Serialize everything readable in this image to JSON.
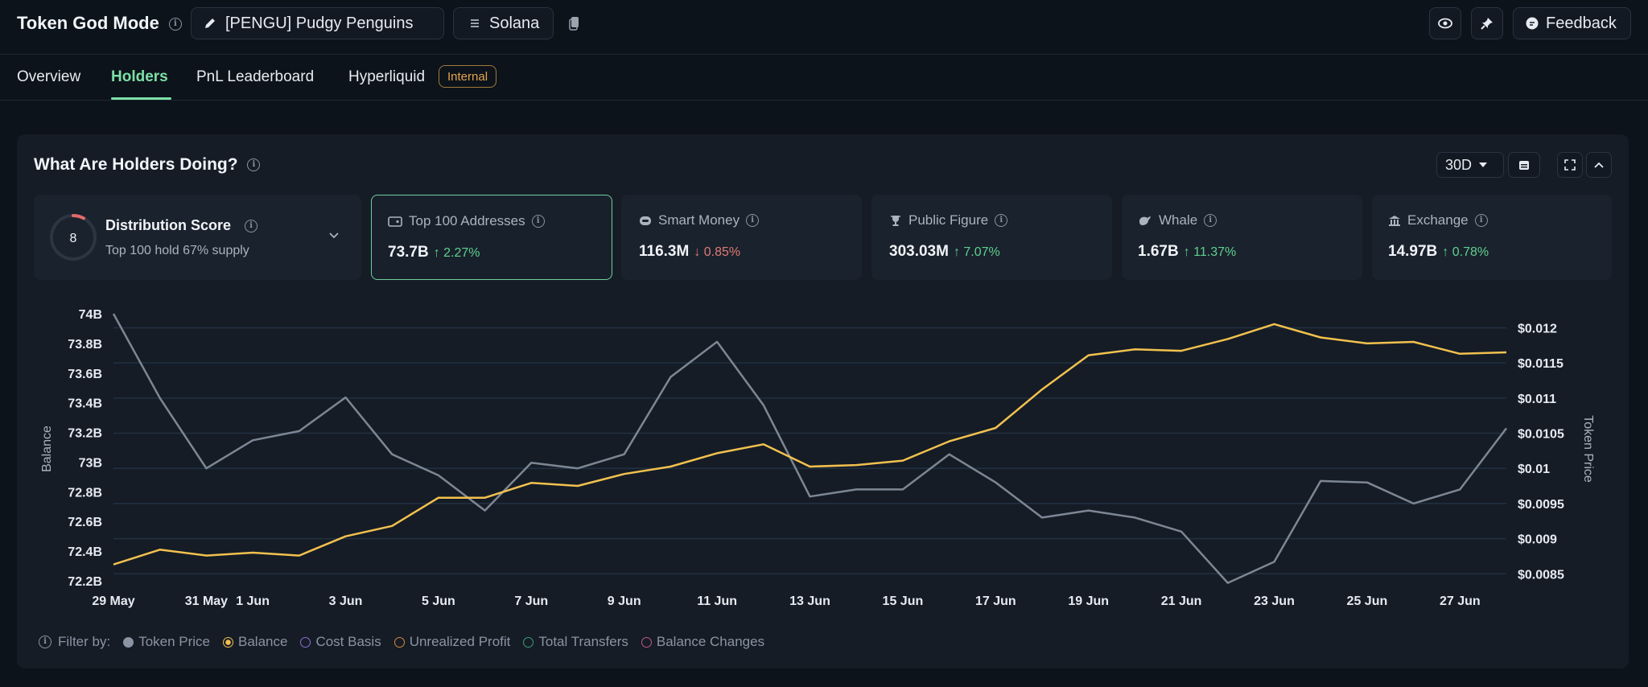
{
  "header": {
    "app_title": "Token God Mode",
    "token_name": "[PENGU] Pudgy Penguins",
    "chain": "Solana",
    "feedback_label": "Feedback"
  },
  "tabs": [
    {
      "label": "Overview",
      "active": false
    },
    {
      "label": "Holders",
      "active": true
    },
    {
      "label": "PnL Leaderboard",
      "active": false
    },
    {
      "label": "Hyperliquid",
      "active": false,
      "badge": "Internal"
    }
  ],
  "panel": {
    "title": "What Are Holders Doing?",
    "range": "30D"
  },
  "distribution": {
    "score": "8",
    "title": "Distribution Score",
    "subtitle": "Top 100 hold 67% supply",
    "score_fraction": 0.08
  },
  "cards": [
    {
      "label": "Top 100 Addresses",
      "value": "73.7B",
      "change": "2.27%",
      "direction": "up",
      "selected": true,
      "icon": "wallet-icon"
    },
    {
      "label": "Smart Money",
      "value": "116.3M",
      "change": "0.85%",
      "direction": "down",
      "selected": false,
      "icon": "robot-icon"
    },
    {
      "label": "Public Figure",
      "value": "303.03M",
      "change": "7.07%",
      "direction": "up",
      "selected": false,
      "icon": "trophy-icon"
    },
    {
      "label": "Whale",
      "value": "1.67B",
      "change": "11.37%",
      "direction": "up",
      "selected": false,
      "icon": "whale-icon"
    },
    {
      "label": "Exchange",
      "value": "14.97B",
      "change": "0.78%",
      "direction": "up",
      "selected": false,
      "icon": "bank-icon"
    }
  ],
  "filters": {
    "label": "Filter by:",
    "items": [
      {
        "label": "Token Price",
        "color": "#8a94a2",
        "active": true
      },
      {
        "label": "Balance",
        "color": "#f2c14e",
        "active": true
      },
      {
        "label": "Cost Basis",
        "color": "#8b6fd6",
        "active": false
      },
      {
        "label": "Unrealized Profit",
        "color": "#d08a3a",
        "active": false
      },
      {
        "label": "Total Transfers",
        "color": "#3f9c7a",
        "active": false
      },
      {
        "label": "Balance Changes",
        "color": "#c0568a",
        "active": false
      }
    ]
  },
  "chart_data": {
    "type": "line",
    "ylabel": "Balance",
    "y2label": "Token Price",
    "ylim": [
      72.2,
      74.0
    ],
    "y2lim": [
      0.0084,
      0.0122
    ],
    "yticks": [
      "74B",
      "73.8B",
      "73.6B",
      "73.4B",
      "73.2B",
      "73B",
      "72.8B",
      "72.6B",
      "72.4B",
      "72.2B"
    ],
    "y2ticks": [
      "$0.012",
      "$0.0115",
      "$0.011",
      "$0.0105",
      "$0.01",
      "$0.0095",
      "$0.009",
      "$0.0085"
    ],
    "xticks": [
      "29 May",
      "31 May",
      "1 Jun",
      "3 Jun",
      "5 Jun",
      "7 Jun",
      "9 Jun",
      "11 Jun",
      "13 Jun",
      "15 Jun",
      "17 Jun",
      "19 Jun",
      "21 Jun",
      "23 Jun",
      "25 Jun",
      "27 Jun"
    ],
    "x": [
      "29 May",
      "30 May",
      "31 May",
      "1 Jun",
      "2 Jun",
      "3 Jun",
      "4 Jun",
      "5 Jun",
      "6 Jun",
      "7 Jun",
      "8 Jun",
      "9 Jun",
      "10 Jun",
      "11 Jun",
      "12 Jun",
      "13 Jun",
      "14 Jun",
      "15 Jun",
      "16 Jun",
      "17 Jun",
      "18 Jun",
      "19 Jun",
      "20 Jun",
      "21 Jun",
      "22 Jun",
      "23 Jun",
      "24 Jun",
      "25 Jun",
      "26 Jun",
      "27 Jun",
      "28 Jun"
    ],
    "series": [
      {
        "name": "Balance",
        "axis": "left",
        "color": "#f2c14e",
        "values": [
          72.31,
          72.41,
          72.37,
          72.39,
          72.37,
          72.5,
          72.57,
          72.76,
          72.76,
          72.86,
          72.84,
          72.92,
          72.97,
          73.06,
          73.12,
          72.97,
          72.98,
          73.01,
          73.14,
          73.23,
          73.49,
          73.72,
          73.76,
          73.75,
          73.83,
          73.93,
          73.84,
          73.8,
          73.81,
          73.73,
          73.74
        ]
      },
      {
        "name": "Token Price",
        "axis": "right",
        "color": "#7d8794",
        "values": [
          0.0122,
          0.011,
          0.01,
          0.0104,
          0.01053,
          0.01101,
          0.0102,
          0.0099,
          0.0094,
          0.01008,
          0.01,
          0.0102,
          0.0113,
          0.0118,
          0.0109,
          0.0096,
          0.0097,
          0.0097,
          0.0102,
          0.0098,
          0.0093,
          0.0094,
          0.0093,
          0.0091,
          0.00837,
          0.00867,
          0.00982,
          0.0098,
          0.0095,
          0.0097,
          0.01057
        ]
      }
    ],
    "grid": true,
    "legend": "none"
  }
}
